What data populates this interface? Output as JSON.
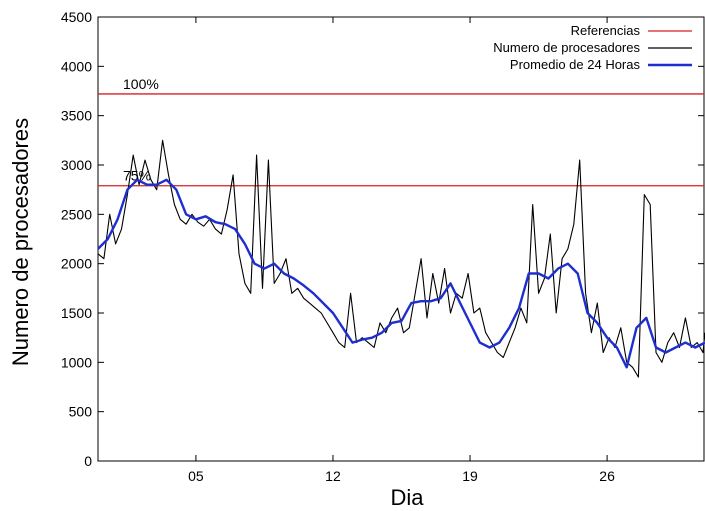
{
  "chart_data": {
    "type": "line",
    "title": "",
    "xlabel": "Dia",
    "ylabel": "Numero de procesadores",
    "xlim": [
      0,
      31
    ],
    "ylim": [
      0,
      4500
    ],
    "x_ticks": [
      {
        "value": 5,
        "label": "05"
      },
      {
        "value": 12,
        "label": "12"
      },
      {
        "value": 19,
        "label": "19"
      },
      {
        "value": 26,
        "label": "26"
      }
    ],
    "y_ticks": [
      0,
      500,
      1000,
      1500,
      2000,
      2500,
      3000,
      3500,
      4000,
      4500
    ],
    "grid": false,
    "legend_position": "top-right",
    "reference_lines": [
      {
        "value": 3720,
        "label": "100%"
      },
      {
        "value": 2790,
        "label": "75%"
      }
    ],
    "series": [
      {
        "name": "Referencias",
        "color": "#d62020",
        "style": "reference"
      },
      {
        "name": "Numero de procesadores",
        "color": "#000000",
        "x": [
          0,
          0.3,
          0.6,
          0.9,
          1.2,
          1.5,
          1.8,
          2.1,
          2.4,
          2.7,
          3.0,
          3.3,
          3.6,
          3.9,
          4.2,
          4.5,
          4.8,
          5.1,
          5.4,
          5.7,
          6.0,
          6.3,
          6.6,
          6.9,
          7.2,
          7.5,
          7.8,
          8.1,
          8.4,
          8.7,
          9.0,
          9.3,
          9.6,
          9.9,
          10.2,
          10.5,
          10.8,
          11.1,
          11.4,
          11.7,
          12.0,
          12.3,
          12.6,
          12.9,
          13.2,
          13.5,
          13.8,
          14.1,
          14.4,
          14.7,
          15.0,
          15.3,
          15.6,
          15.9,
          16.2,
          16.5,
          16.8,
          17.1,
          17.4,
          17.7,
          18.0,
          18.3,
          18.6,
          18.9,
          19.2,
          19.5,
          19.8,
          20.1,
          20.4,
          20.7,
          21.0,
          21.3,
          21.6,
          21.9,
          22.2,
          22.5,
          22.8,
          23.1,
          23.4,
          23.7,
          24.0,
          24.3,
          24.6,
          24.9,
          25.2,
          25.5,
          25.8,
          26.1,
          26.4,
          26.7,
          27.0,
          27.3,
          27.6,
          27.9,
          28.2,
          28.5,
          28.8,
          29.1,
          29.4,
          29.7,
          30.0,
          30.3,
          30.6,
          30.9,
          31.0
        ],
        "values": [
          2100,
          2050,
          2500,
          2200,
          2350,
          2700,
          3100,
          2800,
          3050,
          2850,
          2750,
          3250,
          2900,
          2600,
          2450,
          2400,
          2500,
          2420,
          2380,
          2450,
          2350,
          2300,
          2550,
          2900,
          2100,
          1800,
          1700,
          3100,
          1750,
          3050,
          1800,
          1900,
          2050,
          1700,
          1750,
          1650,
          1600,
          1550,
          1500,
          1400,
          1300,
          1200,
          1150,
          1700,
          1200,
          1250,
          1200,
          1150,
          1400,
          1300,
          1450,
          1550,
          1300,
          1350,
          1700,
          2050,
          1450,
          1900,
          1600,
          1950,
          1500,
          1700,
          1650,
          1900,
          1500,
          1550,
          1300,
          1200,
          1100,
          1050,
          1200,
          1350,
          1550,
          1400,
          2600,
          1700,
          1850,
          2300,
          1500,
          2050,
          2150,
          2400,
          3050,
          1700,
          1300,
          1600,
          1100,
          1250,
          1150,
          1350,
          1000,
          950,
          850,
          2700,
          2600,
          1100,
          1000,
          1200,
          1300,
          1150,
          1450,
          1150,
          1200,
          1100,
          1300
        ]
      },
      {
        "name": "Promedio de 24 Horas",
        "color": "#1f2fcf",
        "x": [
          0,
          0.5,
          1.0,
          1.5,
          2.0,
          2.5,
          3.0,
          3.5,
          4.0,
          4.5,
          5.0,
          5.5,
          6.0,
          6.5,
          7.0,
          7.5,
          8.0,
          8.5,
          9.0,
          9.5,
          10.0,
          10.5,
          11.0,
          11.5,
          12.0,
          12.5,
          13.0,
          13.5,
          14.0,
          14.5,
          15.0,
          15.5,
          16.0,
          16.5,
          17.0,
          17.5,
          18.0,
          18.5,
          19.0,
          19.5,
          20.0,
          20.5,
          21.0,
          21.5,
          22.0,
          22.5,
          23.0,
          23.5,
          24.0,
          24.5,
          25.0,
          25.5,
          26.0,
          26.5,
          27.0,
          27.5,
          28.0,
          28.5,
          29.0,
          29.5,
          30.0,
          30.5,
          31.0
        ],
        "values": [
          2150,
          2250,
          2450,
          2750,
          2850,
          2800,
          2800,
          2850,
          2750,
          2500,
          2450,
          2480,
          2420,
          2400,
          2350,
          2200,
          2000,
          1950,
          2000,
          1900,
          1850,
          1780,
          1700,
          1600,
          1500,
          1350,
          1200,
          1230,
          1250,
          1300,
          1400,
          1420,
          1600,
          1620,
          1620,
          1650,
          1800,
          1600,
          1400,
          1200,
          1150,
          1200,
          1350,
          1550,
          1900,
          1900,
          1850,
          1950,
          2000,
          1900,
          1500,
          1400,
          1250,
          1150,
          950,
          1350,
          1450,
          1150,
          1100,
          1150,
          1200,
          1150,
          1200
        ]
      }
    ]
  }
}
